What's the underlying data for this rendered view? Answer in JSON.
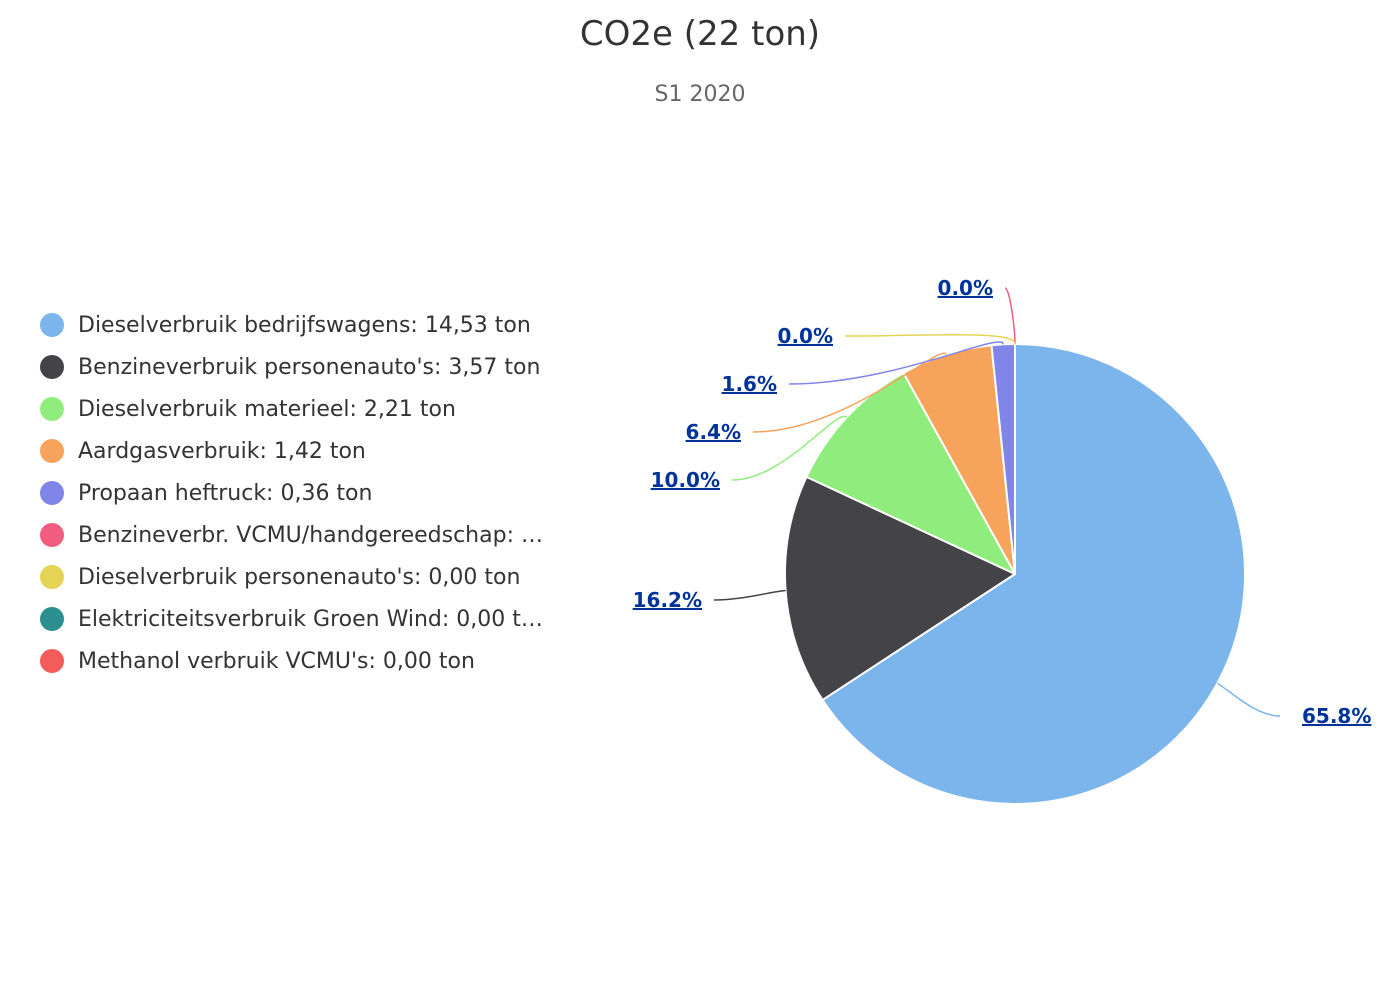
{
  "header": {
    "title": "CO2e (22 ton)",
    "subtitle": "S1 2020"
  },
  "legend": {
    "items": [
      {
        "label": "Dieselverbruik bedrijfswagens: 14,53 ton",
        "color": "#7cb5ec"
      },
      {
        "label": "Benzineverbruik personenauto's: 3,57 ton",
        "color": "#434348"
      },
      {
        "label": "Dieselverbruik materieel: 2,21 ton",
        "color": "#90ed7d"
      },
      {
        "label": "Aardgasverbruik: 1,42 ton",
        "color": "#f7a35c"
      },
      {
        "label": "Propaan heftruck: 0,36 ton",
        "color": "#8085e9"
      },
      {
        "label": "Benzineverbr. VCMU/handgereedschap: …",
        "color": "#f15c80"
      },
      {
        "label": "Dieselverbruik personenauto's: 0,00 ton",
        "color": "#e4d354"
      },
      {
        "label": "Elektriciteitsverbruik Groen Wind: 0,00 t…",
        "color": "#2b908f"
      },
      {
        "label": "Methanol verbruik VCMU's: 0,00 ton",
        "color": "#f45b5b"
      }
    ]
  },
  "chart_data": {
    "type": "pie",
    "title": "CO2e (22 ton)",
    "subtitle": "S1 2020",
    "unit": "ton",
    "legend_position": "left",
    "slices": [
      {
        "name": "Dieselverbruik bedrijfswagens",
        "value": 14.53,
        "percent_label": "65.8%",
        "color": "#7cb5ec"
      },
      {
        "name": "Benzineverbruik personenauto's",
        "value": 3.57,
        "percent_label": "16.2%",
        "color": "#434348"
      },
      {
        "name": "Dieselverbruik materieel",
        "value": 2.21,
        "percent_label": "10.0%",
        "color": "#90ed7d"
      },
      {
        "name": "Aardgasverbruik",
        "value": 1.42,
        "percent_label": "6.4%",
        "color": "#f7a35c"
      },
      {
        "name": "Propaan heftruck",
        "value": 0.36,
        "percent_label": "1.6%",
        "color": "#8085e9"
      },
      {
        "name": "Benzineverbr. VCMU/handgereedschap",
        "value": 0.0,
        "percent_label": "0.0%",
        "color": "#f15c80"
      },
      {
        "name": "Dieselverbruik personenauto's",
        "value": 0.0,
        "percent_label": "0.0%",
        "color": "#e4d354"
      },
      {
        "name": "Elektriciteitsverbruik Groen Wind",
        "value": 0.0,
        "percent_label": "",
        "color": "#2b908f"
      },
      {
        "name": "Methanol verbruik VCMU's",
        "value": 0.0,
        "percent_label": "",
        "color": "#f45b5b"
      }
    ]
  }
}
